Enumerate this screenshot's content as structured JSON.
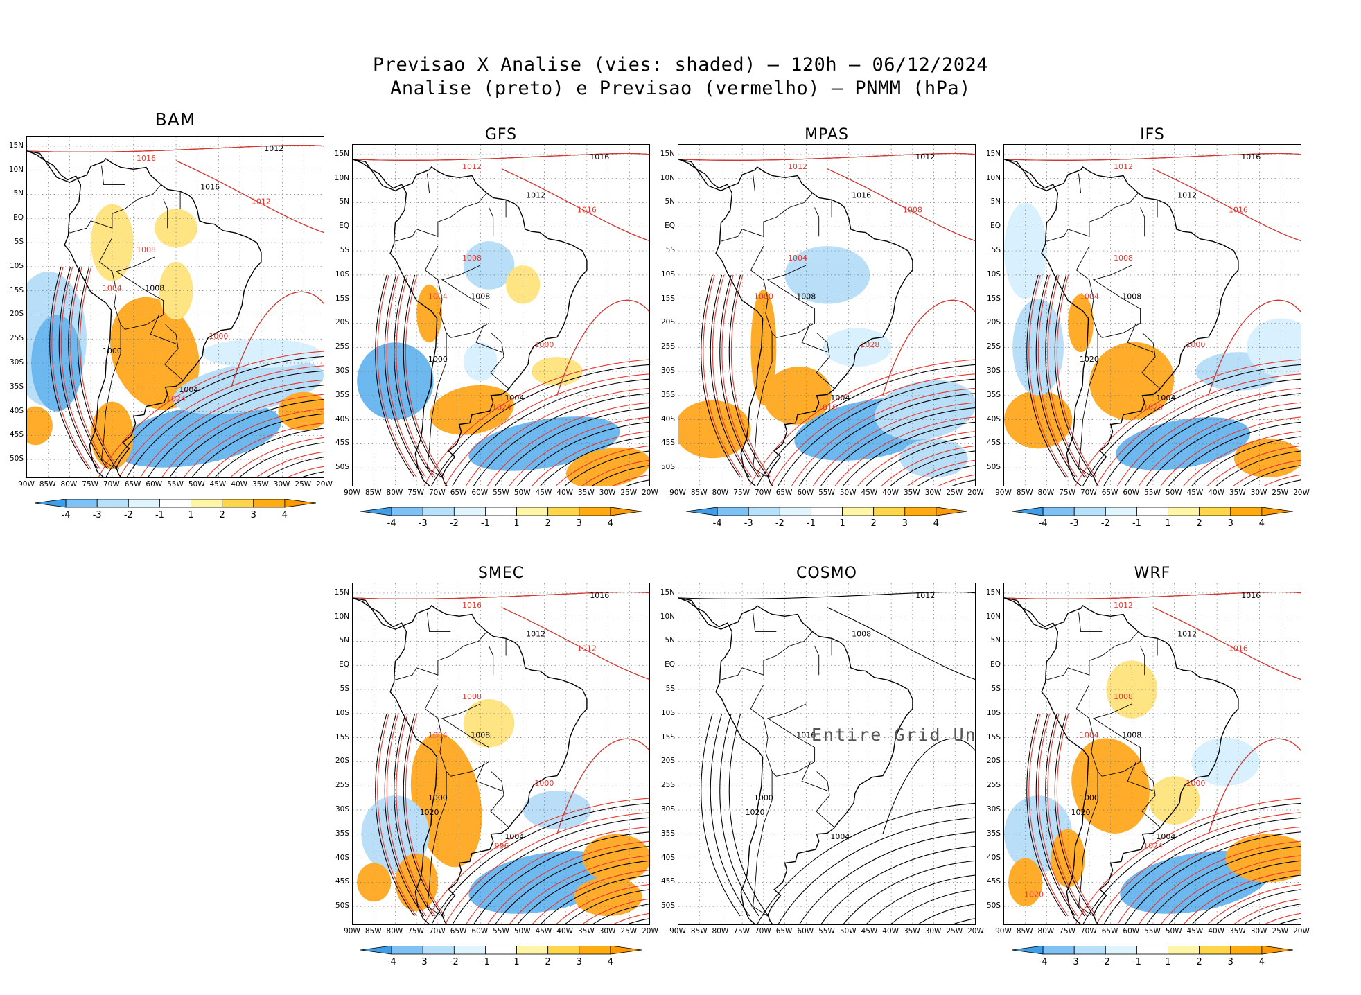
{
  "title_line1": "Previsao X Analise (vies: shaded) — 120h — 06/12/2024",
  "title_line2": "Analise (preto) e Previsao (vermelho) — PNMM (hPa)",
  "lat_labels": [
    "15N",
    "10N",
    "5N",
    "EQ",
    "5S",
    "10S",
    "15S",
    "20S",
    "25S",
    "30S",
    "35S",
    "40S",
    "45S",
    "50S"
  ],
  "lon_labels": [
    "90W",
    "85W",
    "80W",
    "75W",
    "70W",
    "65W",
    "60W",
    "55W",
    "50W",
    "45W",
    "40W",
    "35W",
    "30W",
    "25W",
    "20W"
  ],
  "colorbar": {
    "labels": [
      "-4",
      "-3",
      "-2",
      "-1",
      "1",
      "2",
      "3",
      "4"
    ],
    "colors": [
      "#3d9eea",
      "#7ec1f4",
      "#b7e1fb",
      "#dff4fd",
      "#ffffff",
      "#fff5a6",
      "#ffd54a",
      "#ffac10",
      "#ff9900"
    ]
  },
  "colors": {
    "analysis": "#000000",
    "forecast": "#e8362e",
    "negative_bias": "#6eb8f0",
    "positive_bias": "#ffa41a"
  },
  "panels": [
    {
      "name": "BAM",
      "has_data": true,
      "labels_black": [
        "1012",
        "1016",
        "1008",
        "1004",
        "1000"
      ],
      "labels_red": [
        "1016",
        "1012",
        "1008",
        "1004",
        "1000",
        "1024"
      ]
    },
    {
      "name": "GFS",
      "has_data": true,
      "labels_black": [
        "1016",
        "1012",
        "1008",
        "1004",
        "1000"
      ],
      "labels_red": [
        "1012",
        "1016",
        "1008",
        "1004",
        "1000",
        "1024"
      ]
    },
    {
      "name": "MPAS",
      "has_data": true,
      "labels_black": [
        "1012",
        "1016",
        "1008",
        "1004"
      ],
      "labels_red": [
        "1012",
        "1008",
        "1004",
        "1000",
        "1028",
        "1016"
      ]
    },
    {
      "name": "IFS",
      "has_data": true,
      "labels_black": [
        "1016",
        "1012",
        "1008",
        "1004",
        "1020"
      ],
      "labels_red": [
        "1012",
        "1016",
        "1008",
        "1004",
        "1000",
        "1020"
      ]
    },
    {
      "name": "SMEC",
      "has_data": true,
      "labels_black": [
        "1016",
        "1012",
        "1008",
        "1004",
        "1000",
        "1020"
      ],
      "labels_red": [
        "1016",
        "1012",
        "1008",
        "1004",
        "1000",
        "996"
      ]
    },
    {
      "name": "COSMO",
      "has_data": false,
      "undef_text": "Entire Grid Undef",
      "labels_black": [
        "1012",
        "1008",
        "1016",
        "1004",
        "1000",
        "1020"
      ]
    },
    {
      "name": "WRF",
      "has_data": true,
      "labels_black": [
        "1016",
        "1012",
        "1008",
        "1004",
        "1000",
        "1020"
      ],
      "labels_red": [
        "1012",
        "1016",
        "1008",
        "1004",
        "1000",
        "1024",
        "1020"
      ]
    }
  ]
}
